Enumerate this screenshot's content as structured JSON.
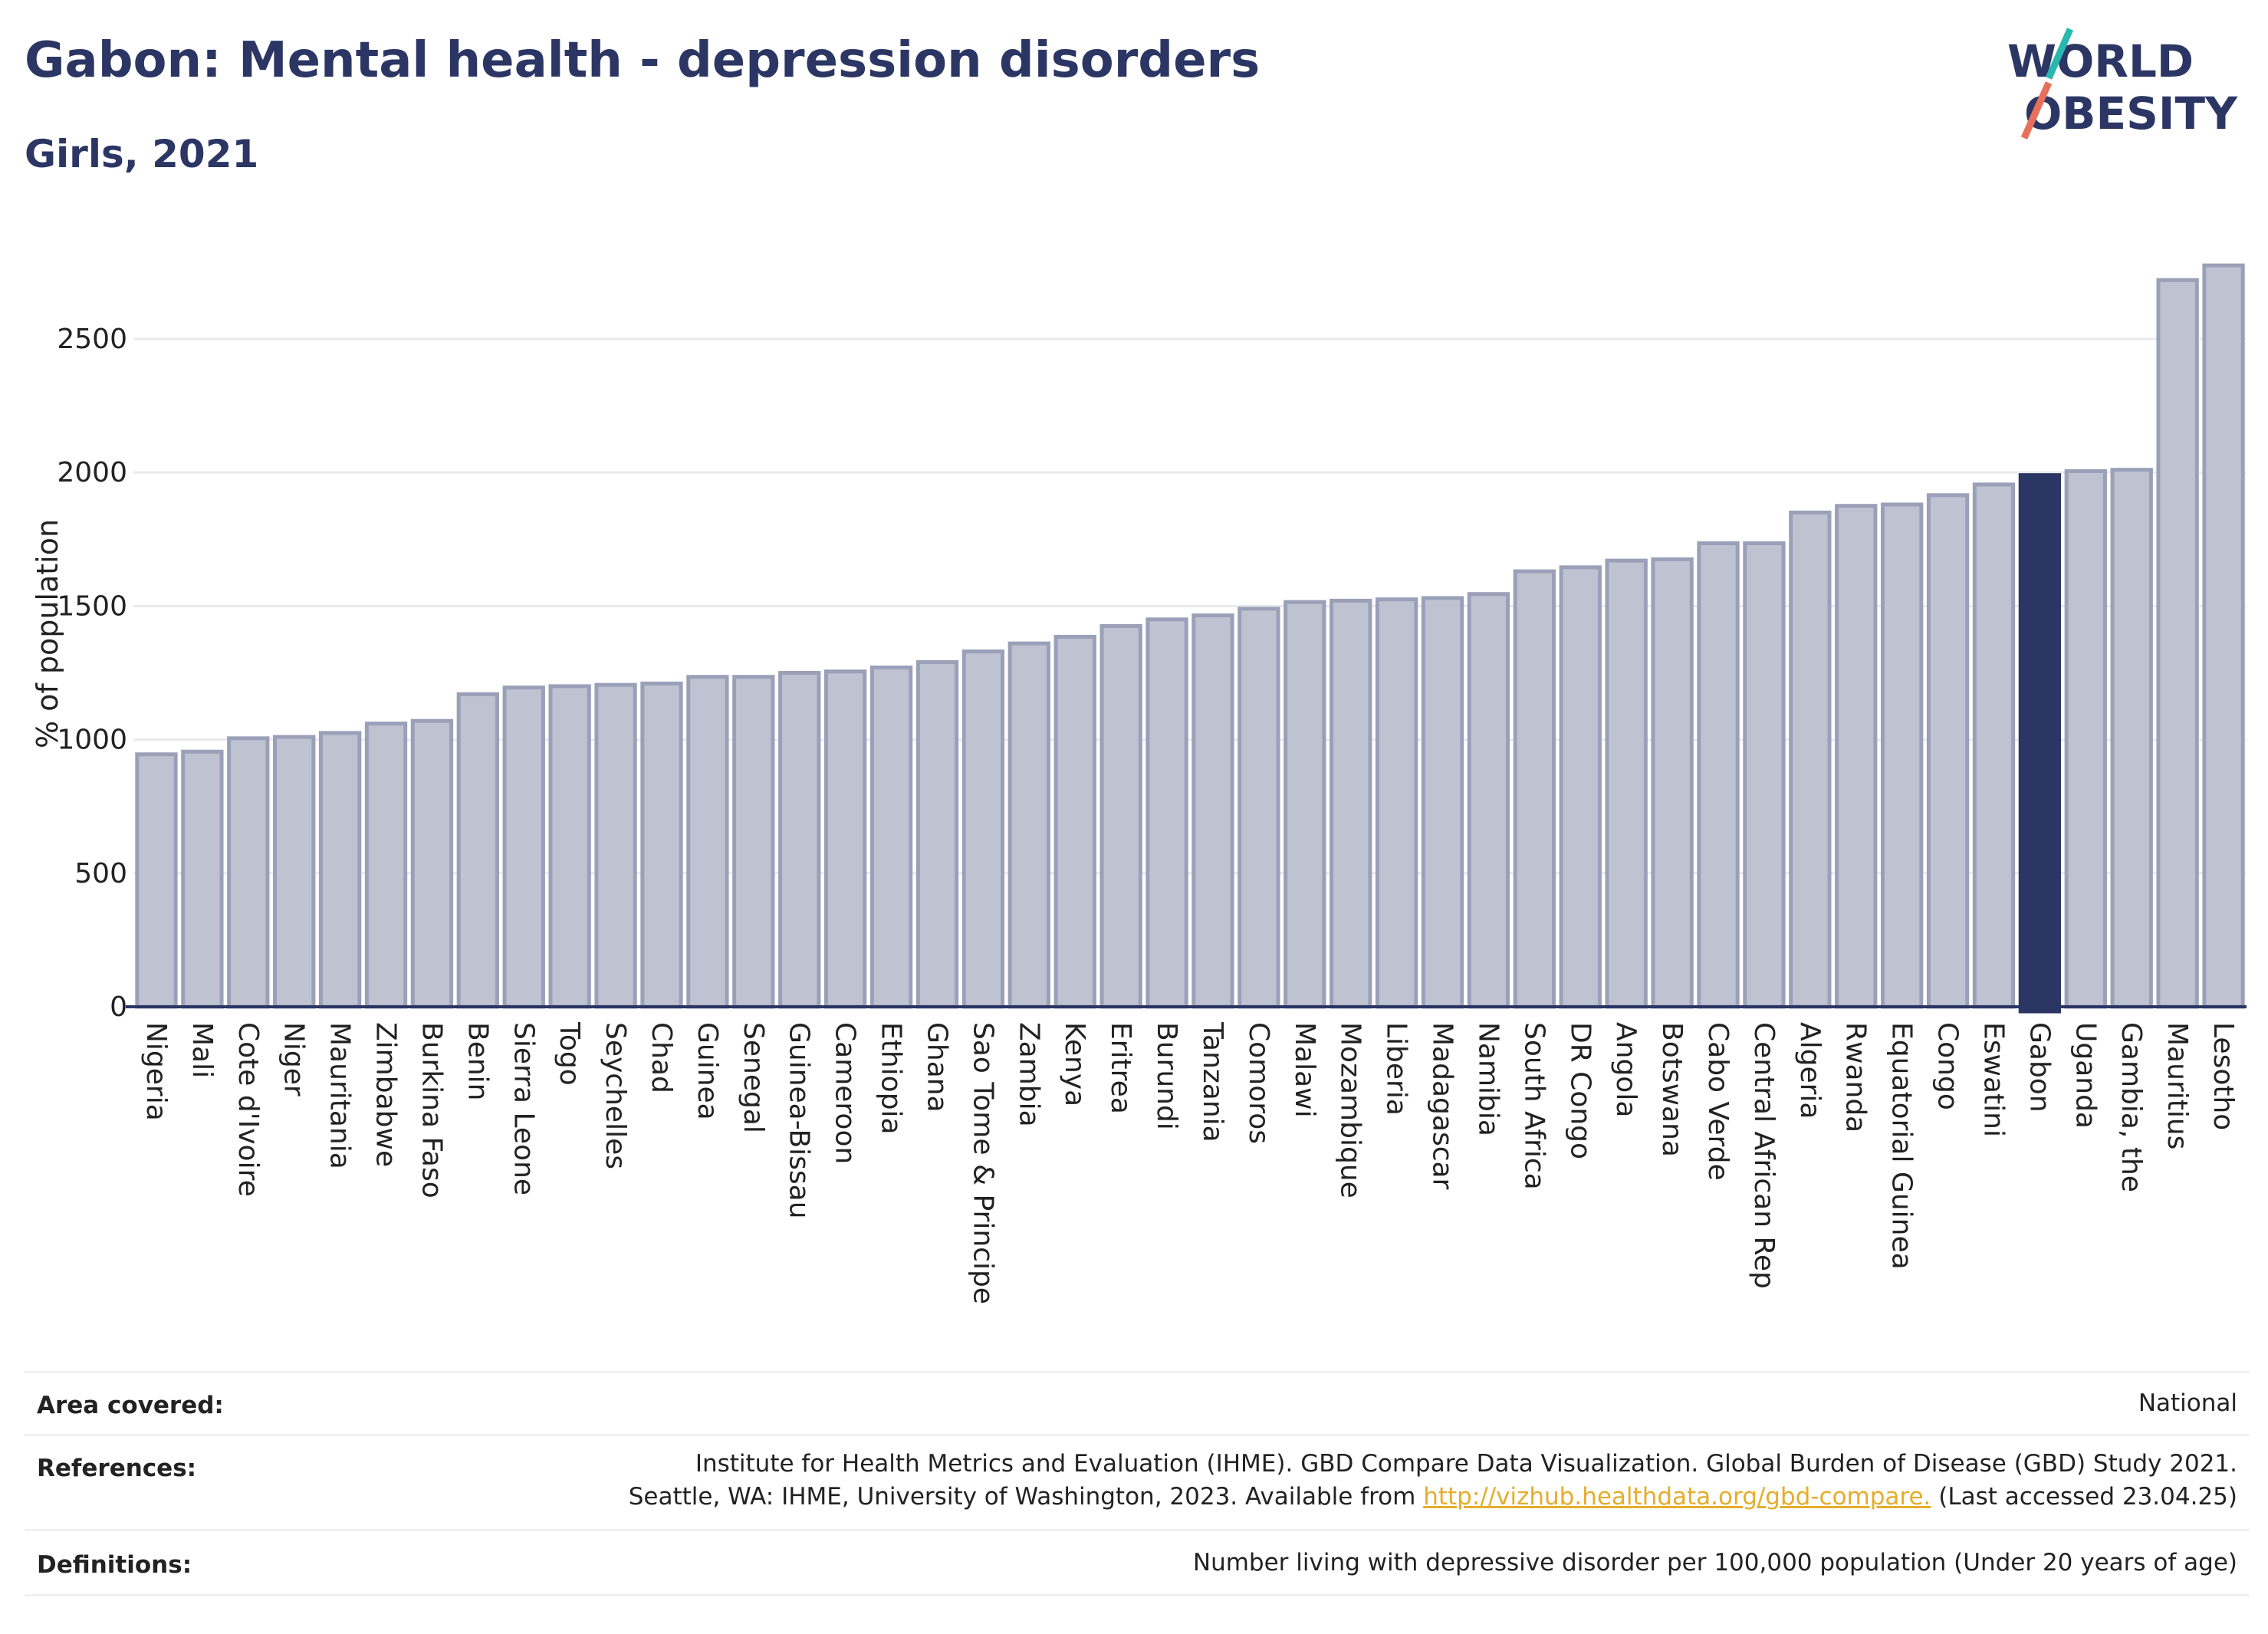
{
  "header": {
    "title": "Gabon: Mental health - depression disorders",
    "subtitle": "Girls, 2021"
  },
  "logo": {
    "line1": "WORLD",
    "line2": "OBESITY"
  },
  "colors": {
    "bar": "#bfc3d1",
    "bar_border": "#9aa0b8",
    "highlight": "#2b3664",
    "axis": "#2b3664",
    "grid": "#e8eaed",
    "link": "#e5ad2b",
    "logo_slash_top": "#2ab7b0",
    "logo_slash_bottom": "#e8705b"
  },
  "chart_data": {
    "type": "bar",
    "title": "",
    "xlabel": "",
    "ylabel": "% of population",
    "ylim": [
      0,
      2850
    ],
    "yticks": [
      0,
      500,
      1000,
      1500,
      2000,
      2500
    ],
    "grid": true,
    "highlight": "Gabon",
    "categories": [
      "Nigeria",
      "Mali",
      "Cote d'Ivoire",
      "Niger",
      "Mauritania",
      "Zimbabwe",
      "Burkina Faso",
      "Benin",
      "Sierra Leone",
      "Togo",
      "Seychelles",
      "Chad",
      "Guinea",
      "Senegal",
      "Guinea-Bissau",
      "Cameroon",
      "Ethiopia",
      "Ghana",
      "Sao Tome & Principe",
      "Zambia",
      "Kenya",
      "Eritrea",
      "Burundi",
      "Tanzania",
      "Comoros",
      "Malawi",
      "Mozambique",
      "Liberia",
      "Madagascar",
      "Namibia",
      "South Africa",
      "DR Congo",
      "Angola",
      "Botswana",
      "Cabo Verde",
      "Central African Rep",
      "Algeria",
      "Rwanda",
      "Equatorial Guinea",
      "Congo",
      "Eswatini",
      "Gabon",
      "Uganda",
      "Gambia, the",
      "Mauritius",
      "Lesotho"
    ],
    "values": [
      945,
      955,
      1005,
      1010,
      1025,
      1060,
      1070,
      1170,
      1195,
      1200,
      1205,
      1210,
      1235,
      1235,
      1250,
      1255,
      1270,
      1290,
      1330,
      1360,
      1385,
      1425,
      1450,
      1465,
      1490,
      1515,
      1520,
      1525,
      1530,
      1545,
      1630,
      1645,
      1670,
      1675,
      1735,
      1735,
      1850,
      1875,
      1880,
      1915,
      1955,
      1990,
      2005,
      2010,
      2720,
      2775
    ]
  },
  "info": {
    "area_label": "Area covered:",
    "area_value": "National",
    "references_label": "References:",
    "references_line1": "Institute for Health Metrics and Evaluation (IHME). GBD Compare Data Visualization. Global Burden of Disease (GBD) Study 2021.",
    "references_line2_prefix": "Seattle, WA: IHME, University of Washington, 2023. Available from ",
    "references_link": "http://vizhub.healthdata.org/gbd-compare.",
    "references_line2_suffix": " (Last accessed 23.04.25)",
    "definitions_label": "Definitions:",
    "definitions_value": "Number living with depressive disorder per 100,000 population (Under 20 years of age)"
  }
}
